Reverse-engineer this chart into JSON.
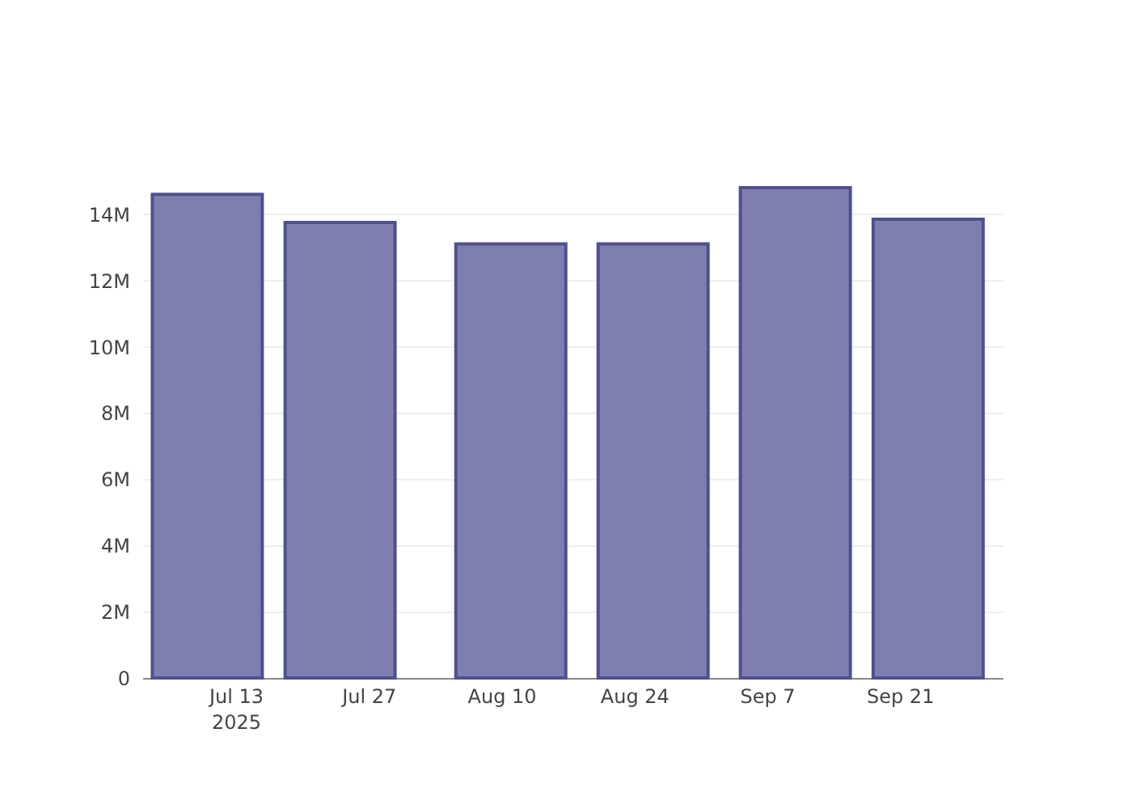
{
  "chart_data": {
    "type": "bar",
    "x": [
      "2025-07-10",
      "2025-07-24",
      "2025-08-11",
      "2025-08-26",
      "2025-09-10",
      "2025-09-24"
    ],
    "values": [
      14600000,
      13750000,
      13100000,
      13100000,
      14800000,
      13850000
    ],
    "color": "#7f7faf",
    "xlim": [
      "2025-07-04",
      "2025-10-01"
    ],
    "xticks": [
      {
        "value": "2025-07-13",
        "label": "Jul 13\n2025"
      },
      {
        "value": "2025-07-27",
        "label": "Jul 27"
      },
      {
        "value": "2025-08-10",
        "label": "Aug 10"
      },
      {
        "value": "2025-08-24",
        "label": "Aug 24"
      },
      {
        "value": "2025-09-07",
        "label": "Sep 7"
      },
      {
        "value": "2025-09-21",
        "label": "Sep 21"
      }
    ],
    "yticks": [
      {
        "value": 0,
        "label": "0"
      },
      {
        "value": 2000000,
        "label": "2M"
      },
      {
        "value": 4000000,
        "label": "4M"
      },
      {
        "value": 6000000,
        "label": "6M"
      },
      {
        "value": 8000000,
        "label": "8M"
      },
      {
        "value": 10000000,
        "label": "10M"
      },
      {
        "value": 12000000,
        "label": "12M"
      },
      {
        "value": 14000000,
        "label": "14M"
      }
    ],
    "ylim": [
      0,
      14800000
    ],
    "grid": "y"
  }
}
